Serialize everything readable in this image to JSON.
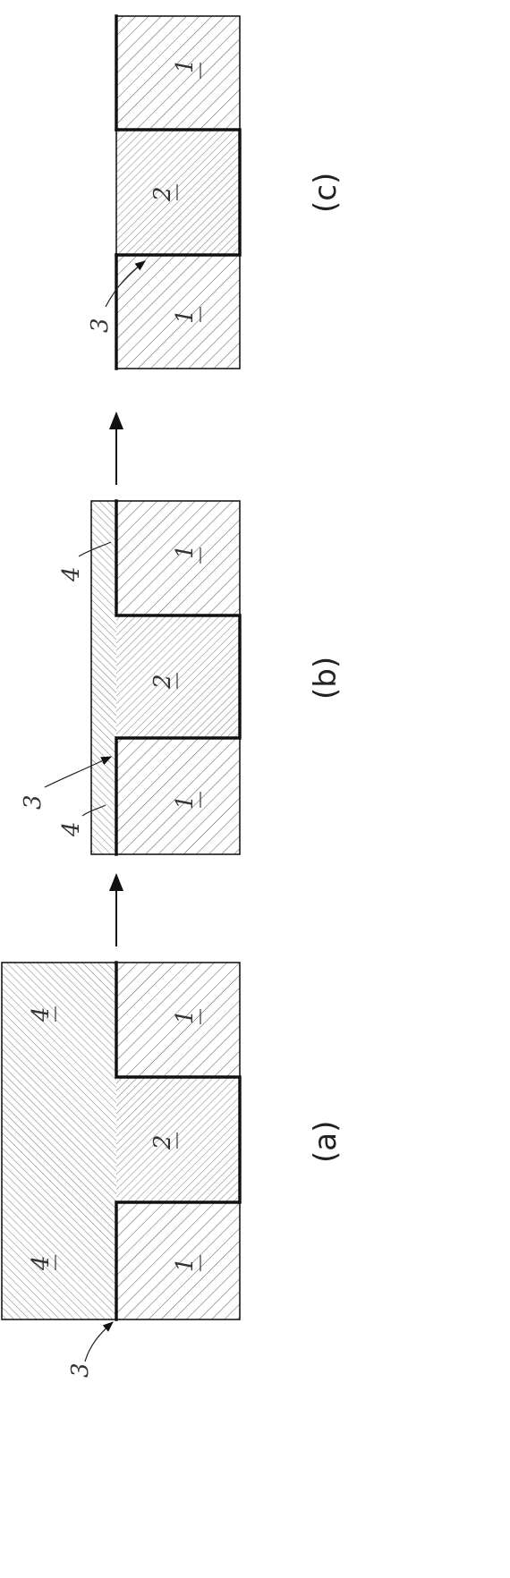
{
  "panels": {
    "a": {
      "caption": "(a)",
      "labels": {
        "part1_top": "1",
        "part1_bottom": "1",
        "part2": "2",
        "part4_top": "4",
        "part4_bottom": "4",
        "ref3": "3"
      }
    },
    "b": {
      "caption": "(b)",
      "labels": {
        "part1_top": "1",
        "part1_bottom": "1",
        "part2": "2",
        "ref4_top": "4",
        "ref4_bottom": "4",
        "ref3": "3"
      }
    },
    "c": {
      "caption": "(c)",
      "labels": {
        "part1_top": "1",
        "part1_bottom": "1",
        "part2": "2",
        "ref3": "3"
      }
    }
  },
  "colors": {
    "line": "#111111",
    "hatch": "#4a4a4a",
    "background": "#ffffff"
  }
}
